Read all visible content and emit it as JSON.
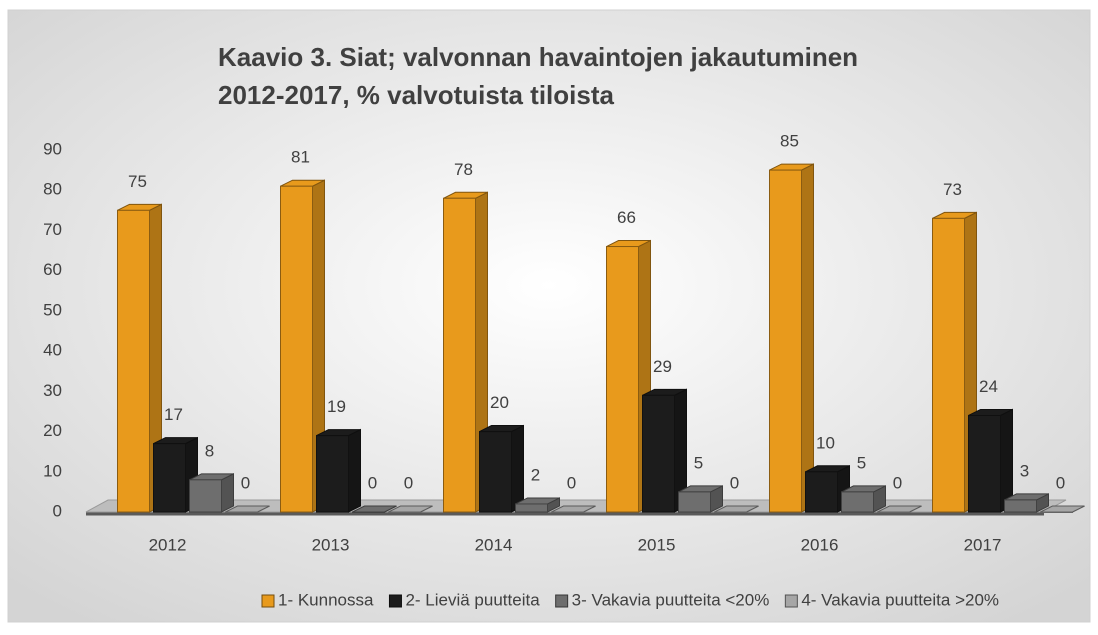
{
  "chart_data": {
    "type": "bar3d",
    "title": [
      "Kaavio 3. Siat; valvonnan havaintojen jakautuminen",
      "2012-2017,  % valvotuista tiloista"
    ],
    "categories": [
      "2012",
      "2013",
      "2014",
      "2015",
      "2016",
      "2017"
    ],
    "series": [
      {
        "name": "1- Kunnossa",
        "color": "#e89a1c",
        "values": [
          75,
          81,
          78,
          66,
          85,
          73
        ]
      },
      {
        "name": "2- Lieviä puutteita",
        "color": "#1c1c1c",
        "values": [
          17,
          19,
          20,
          29,
          10,
          24
        ]
      },
      {
        "name": "3- Vakavia puutteita <20%",
        "color": "#6e6e6e",
        "values": [
          8,
          0,
          2,
          5,
          5,
          3
        ]
      },
      {
        "name": "4- Vakavia puutteita >20%",
        "color": "#a6a6a6",
        "values": [
          0,
          0,
          0,
          0,
          0,
          0
        ]
      }
    ],
    "ylim": [
      0,
      90
    ],
    "yticks": [
      0,
      10,
      20,
      30,
      40,
      50,
      60,
      70,
      80,
      90
    ],
    "legend": "bottom"
  }
}
